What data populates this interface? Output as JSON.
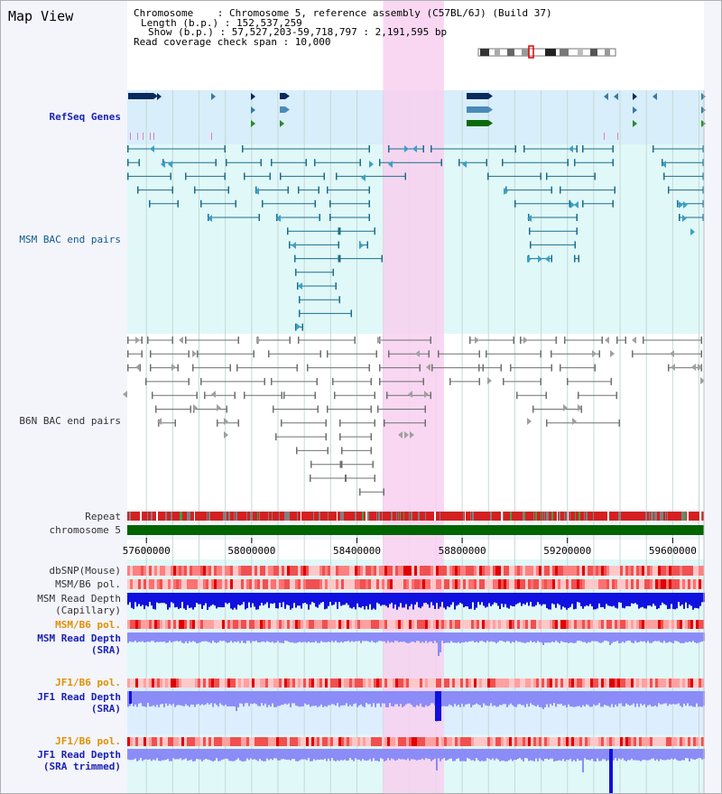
{
  "page": {
    "title": "Map View",
    "info_lines": [
      "Chromosome    : Chromosome 5, reference assembly (C57BL/6J) (Build 37)",
      "Length (b.p.) : 152,537,259",
      "Show (b.p.) : 57,527,203-59,718,797 : 2,191,595 bp",
      "Read coverage check span : 10,000"
    ]
  },
  "tracks": {
    "refseq": "RefSeq Genes",
    "msm_bac": "MSM BAC end pairs",
    "b6n_bac": "B6N BAC end pairs",
    "repeat": "Repeat",
    "chromosome": "chromosome 5",
    "dbsnp": "dbSNP(Mouse)",
    "msm_b6_pol_1": "MSM/B6 pol.",
    "msm_read_cap_1": "MSM Read Depth",
    "msm_read_cap_2": "(Capillary)",
    "msm_b6_pol_2": "MSM/B6 pol.",
    "msm_read_sra_1": "MSM Read Depth",
    "msm_read_sra_2": "(SRA)",
    "jf1_pol_1": "JF1/B6 pol.",
    "jf1_read_sra_1": "JF1 Read Depth",
    "jf1_read_sra_2": "(SRA)",
    "jf1_pol_2": "JF1/B6 pol.",
    "jf1_read_trim_1": "JF1 Read Depth",
    "jf1_read_trim_2": "(SRA trimmed)"
  },
  "axis": {
    "ticks": [
      "57600000",
      "58000000",
      "58400000",
      "58800000",
      "59200000",
      "59600000"
    ],
    "tick_values": [
      57600000,
      58000000,
      58400000,
      58800000,
      59200000,
      59600000
    ],
    "range": [
      57527203,
      59718797
    ]
  },
  "highlight_region": [
    58520000,
    58710000
  ],
  "colors": {
    "refseq_bg": "#d8eefa",
    "msm_bg": "#e0f8f8",
    "highlight": "#f8d0f0",
    "chromosome": "#006400",
    "msm_bac": "#1c6e8c",
    "b6n_bac": "#707070",
    "depth_cap": "#1010e0",
    "depth_sra": "#8c8cf8",
    "jf1_bg": "#ddeeff"
  }
}
